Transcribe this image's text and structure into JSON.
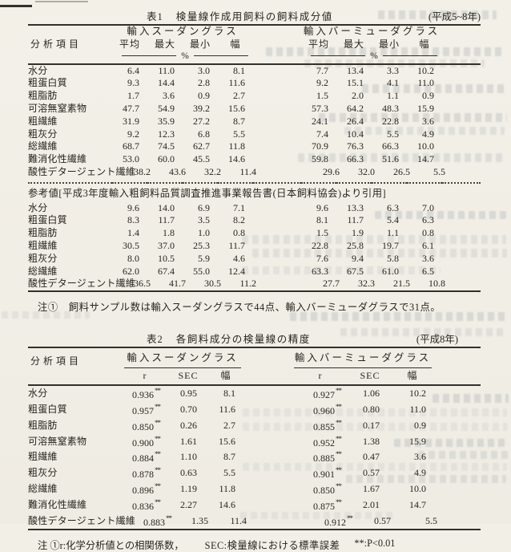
{
  "page": {
    "paper_color": "#f2efe7",
    "ink_color": "#28251f"
  },
  "table1": {
    "label": "表1",
    "title": "検量線作成用飼料の飼料成分値",
    "period": "(平成5~8年)",
    "col_label_header": "分析項目",
    "group1": "輸入スーダングラス",
    "group2": "輸入バーミューダグラス",
    "sub_headers": [
      "平均",
      "最大",
      "最小",
      "幅"
    ],
    "unit": "%",
    "main_rows": [
      {
        "label": "水分",
        "left": [
          "6.4",
          "11.0",
          "3.0",
          "8.1"
        ],
        "right": [
          "7.7",
          "13.4",
          "3.3",
          "10.2"
        ]
      },
      {
        "label": "粗蛋白質",
        "left": [
          "9.3",
          "14.4",
          "2.8",
          "11.6"
        ],
        "right": [
          "9.2",
          "15.1",
          "4.1",
          "11.0"
        ]
      },
      {
        "label": "粗脂肪",
        "left": [
          "1.7",
          "3.6",
          "0.9",
          "2.7"
        ],
        "right": [
          "1.5",
          "2.0",
          "1.1",
          "0.9"
        ]
      },
      {
        "label": "可溶無窒素物",
        "left": [
          "47.7",
          "54.9",
          "39.2",
          "15.6"
        ],
        "right": [
          "57.3",
          "64.2",
          "48.3",
          "15.9"
        ]
      },
      {
        "label": "粗繊維",
        "left": [
          "31.9",
          "35.9",
          "27.2",
          "8.7"
        ],
        "right": [
          "24.1",
          "26.4",
          "22.8",
          "3.6"
        ]
      },
      {
        "label": "粗灰分",
        "left": [
          "9.2",
          "12.3",
          "6.8",
          "5.5"
        ],
        "right": [
          "7.4",
          "10.4",
          "5.5",
          "4.9"
        ]
      },
      {
        "label": "総繊維",
        "left": [
          "68.7",
          "74.5",
          "62.7",
          "11.8"
        ],
        "right": [
          "70.9",
          "76.3",
          "66.3",
          "10.0"
        ]
      },
      {
        "label": "難消化性繊維",
        "left": [
          "53.0",
          "60.0",
          "45.5",
          "14.6"
        ],
        "right": [
          "59.8",
          "66.3",
          "51.6",
          "14.7"
        ]
      },
      {
        "label": "酸性デタージェント繊維",
        "left": [
          "38.2",
          "43.6",
          "32.2",
          "11.4"
        ],
        "right": [
          "29.6",
          "32.0",
          "26.5",
          "5.5"
        ],
        "shift": true
      }
    ],
    "ref_heading": "参考値[平成3年度輸入粗飼料品質調査推進事業報告書(日本飼料協会)より引用]",
    "ref_rows": [
      {
        "label": "水分",
        "left": [
          "9.6",
          "14.0",
          "6.9",
          "7.1"
        ],
        "right": [
          "9.6",
          "13.3",
          "6.3",
          "7.0"
        ]
      },
      {
        "label": "粗蛋白質",
        "left": [
          "8.3",
          "11.7",
          "3.5",
          "8.2"
        ],
        "right": [
          "8.1",
          "11.7",
          "5.4",
          "6.3"
        ]
      },
      {
        "label": "粗脂肪",
        "left": [
          "1.4",
          "1.8",
          "1.0",
          "0.8"
        ],
        "right": [
          "1.5",
          "1.9",
          "1.1",
          "0.8"
        ]
      },
      {
        "label": "粗繊維",
        "left": [
          "30.5",
          "37.0",
          "25.3",
          "11.7"
        ],
        "right": [
          "22.8",
          "25.8",
          "19.7",
          "6.1"
        ]
      },
      {
        "label": "粗灰分",
        "left": [
          "8.0",
          "10.5",
          "5.9",
          "4.6"
        ],
        "right": [
          "7.6",
          "9.4",
          "5.8",
          "3.6"
        ]
      },
      {
        "label": "総繊維",
        "left": [
          "62.0",
          "67.4",
          "55.0",
          "12.4"
        ],
        "right": [
          "63.3",
          "67.5",
          "61.0",
          "6.5"
        ]
      },
      {
        "label": "酸性デタージェント繊維",
        "left": [
          "36.5",
          "41.7",
          "30.5",
          "11.2"
        ],
        "right": [
          "27.7",
          "32.3",
          "21.5",
          "10.8"
        ],
        "shift": true
      }
    ],
    "note": "注①　飼料サンプル数は輸入スーダングラスで44点、輸入バーミューダグラスで31点。"
  },
  "table2": {
    "label": "表2",
    "title": "各飼料成分の検量線の精度",
    "period": "(平成8年)",
    "col_label_header": "分析項目",
    "group1": "輸入スーダングラス",
    "group2": "輸入バーミューダグラス",
    "sub_headers": [
      "r",
      "SEC",
      "幅"
    ],
    "rows": [
      {
        "label": "水分",
        "left": [
          "0.936**",
          "0.95",
          "8.1"
        ],
        "right": [
          "0.927**",
          "1.06",
          "10.2"
        ]
      },
      {
        "label": "粗蛋白質",
        "left": [
          "0.957**",
          "0.70",
          "11.6"
        ],
        "right": [
          "0.960**",
          "0.80",
          "11.0"
        ]
      },
      {
        "label": "粗脂肪",
        "left": [
          "0.850**",
          "0.26",
          "2.7"
        ],
        "right": [
          "0.855**",
          "0.17",
          "0.9"
        ]
      },
      {
        "label": "可溶無窒素物",
        "left": [
          "0.900**",
          "1.61",
          "15.6"
        ],
        "right": [
          "0.952**",
          "1.38",
          "15.9"
        ]
      },
      {
        "label": "粗繊維",
        "left": [
          "0.884**",
          "1.10",
          "8.7"
        ],
        "right": [
          "0.885**",
          "0.47",
          "3.6"
        ]
      },
      {
        "label": "粗灰分",
        "left": [
          "0.878**",
          "0.63",
          "5.5"
        ],
        "right": [
          "0.901**",
          "0.57",
          "4.9"
        ]
      },
      {
        "label": "総繊維",
        "left": [
          "0.896**",
          "1.19",
          "11.8"
        ],
        "right": [
          "0.850**",
          "1.67",
          "10.0"
        ]
      },
      {
        "label": "難消化性繊維",
        "left": [
          "0.836**",
          "2.27",
          "14.6"
        ],
        "right": [
          "0.875**",
          "2.01",
          "14.7"
        ]
      },
      {
        "label": "酸性デタージェント繊維",
        "left": [
          "0.883**",
          "1.35",
          "11.4"
        ],
        "right": [
          "0.912**",
          "0.57",
          "5.5"
        ],
        "shift": true
      }
    ],
    "note_parts": {
      "p1": "注 ①r:化学分析値との相関係数，",
      "p2": "SEC:検量線における標準誤差",
      "p3": "**:P<0.01"
    }
  }
}
